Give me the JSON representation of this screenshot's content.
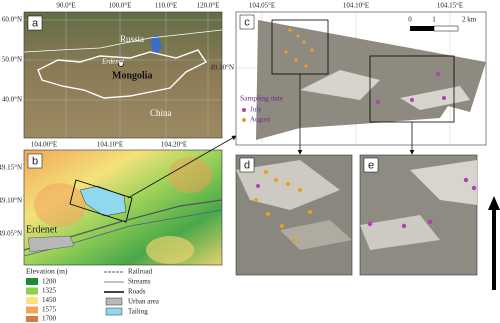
{
  "panels": {
    "a": {
      "label": "a",
      "xticks": [
        "90.0°E",
        "100.0°E",
        "110.0°E",
        "120.0°E"
      ],
      "yticks": [
        "60.0°N",
        "50.0°N",
        "40.0°N"
      ],
      "places": {
        "russia": "Russia",
        "erdenet": "Erdenet",
        "mongolia": "Mongolia",
        "china": "China"
      }
    },
    "b": {
      "label": "b",
      "xticks": [
        "104.00°E",
        "104.10°E",
        "104.20°E"
      ],
      "yticks": [
        "49.15°N",
        "49.10°N",
        "49.05°N"
      ],
      "place": "Erdenet"
    },
    "c": {
      "label": "c",
      "xticks": [
        "104.05°E",
        "104.10°E",
        "104.15°E"
      ],
      "yticks": [
        "49.10°N"
      ],
      "scale": [
        "0",
        "1",
        "2 km"
      ],
      "legend": {
        "title": "Sampling date",
        "items": [
          "July",
          "August"
        ]
      }
    },
    "d": {
      "label": "d"
    },
    "e": {
      "label": "e"
    }
  },
  "legend": {
    "elevation_title": "Elevation (m)",
    "elevation": [
      "1200",
      "1325",
      "1450",
      "1575",
      "1700"
    ],
    "features": [
      "Railroad",
      "Streams",
      "Roads",
      "Urban area",
      "Tailing"
    ]
  }
}
